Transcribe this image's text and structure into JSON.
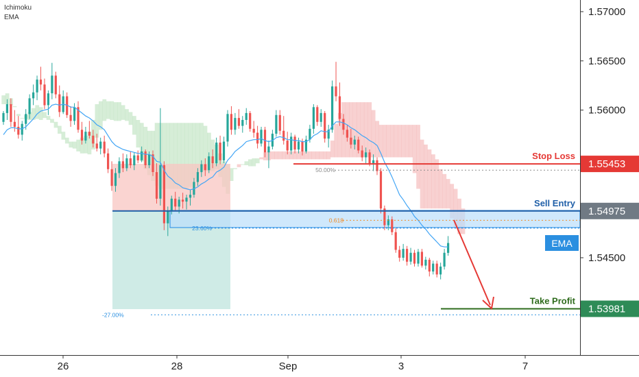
{
  "indicators": [
    "Ichimoku",
    "EMA"
  ],
  "chart_data": {
    "type": "candlestick",
    "symbol_axis": {
      "ticks": [
        "1.57000",
        "1.56500",
        "1.56000",
        "1.55500",
        "1.55000",
        "1.54500"
      ],
      "ylim": [
        1.5345,
        1.5735
      ]
    },
    "x_ticks": [
      "26",
      "28",
      "Sep",
      "3",
      "7"
    ],
    "ohlc": [
      [
        1.5588,
        1.5599,
        1.5585,
        1.5597
      ],
      [
        1.5597,
        1.5611,
        1.559,
        1.5606
      ],
      [
        1.5606,
        1.5612,
        1.5583,
        1.5588
      ],
      [
        1.5588,
        1.56,
        1.5578,
        1.5583
      ],
      [
        1.5583,
        1.5594,
        1.5571,
        1.5575
      ],
      [
        1.5575,
        1.5589,
        1.5569,
        1.5586
      ],
      [
        1.5586,
        1.5601,
        1.558,
        1.5596
      ],
      [
        1.5596,
        1.5616,
        1.5591,
        1.5612
      ],
      [
        1.5612,
        1.5626,
        1.5605,
        1.5618
      ],
      [
        1.5618,
        1.5635,
        1.561,
        1.5631
      ],
      [
        1.5631,
        1.5644,
        1.562,
        1.5626
      ],
      [
        1.5626,
        1.5632,
        1.5601,
        1.5605
      ],
      [
        1.5605,
        1.562,
        1.5595,
        1.5617
      ],
      [
        1.5617,
        1.5648,
        1.5611,
        1.5635
      ],
      [
        1.5635,
        1.5639,
        1.5612,
        1.5616
      ],
      [
        1.5616,
        1.5625,
        1.5593,
        1.5598
      ],
      [
        1.5598,
        1.562,
        1.5596,
        1.5614
      ],
      [
        1.5614,
        1.5618,
        1.5592,
        1.5595
      ],
      [
        1.5595,
        1.5604,
        1.5583,
        1.5589
      ],
      [
        1.5589,
        1.5607,
        1.5585,
        1.5603
      ],
      [
        1.5603,
        1.5609,
        1.5577,
        1.558
      ],
      [
        1.558,
        1.5588,
        1.5565,
        1.5569
      ],
      [
        1.5569,
        1.5583,
        1.5566,
        1.5578
      ],
      [
        1.5578,
        1.5589,
        1.5571,
        1.5574
      ],
      [
        1.5574,
        1.558,
        1.5562,
        1.5566
      ],
      [
        1.5566,
        1.5576,
        1.5558,
        1.5561
      ],
      [
        1.5561,
        1.5572,
        1.5555,
        1.5568
      ],
      [
        1.5568,
        1.5574,
        1.5552,
        1.5556
      ],
      [
        1.5556,
        1.5561,
        1.5536,
        1.554
      ],
      [
        1.554,
        1.5548,
        1.5518,
        1.5523
      ],
      [
        1.5523,
        1.5541,
        1.5517,
        1.5536
      ],
      [
        1.5536,
        1.5552,
        1.5531,
        1.5548
      ],
      [
        1.5548,
        1.5556,
        1.5537,
        1.5541
      ],
      [
        1.5541,
        1.5555,
        1.5538,
        1.5551
      ],
      [
        1.5551,
        1.5558,
        1.5541,
        1.5544
      ],
      [
        1.5544,
        1.5557,
        1.5539,
        1.5554
      ],
      [
        1.5554,
        1.5559,
        1.5546,
        1.5549
      ],
      [
        1.5549,
        1.5563,
        1.5547,
        1.5558
      ],
      [
        1.5558,
        1.556,
        1.5541,
        1.5544
      ],
      [
        1.5544,
        1.5558,
        1.5541,
        1.5555
      ],
      [
        1.5555,
        1.5559,
        1.5533,
        1.5537
      ],
      [
        1.5537,
        1.5546,
        1.5505,
        1.551
      ],
      [
        1.551,
        1.5602,
        1.5503,
        1.5544
      ],
      [
        1.5544,
        1.5548,
        1.5478,
        1.5485
      ],
      [
        1.5485,
        1.5502,
        1.5472,
        1.5498
      ],
      [
        1.5498,
        1.5513,
        1.5494,
        1.551
      ],
      [
        1.551,
        1.5517,
        1.5498,
        1.5502
      ],
      [
        1.5502,
        1.5512,
        1.5495,
        1.5509
      ],
      [
        1.5509,
        1.5516,
        1.55,
        1.5507
      ],
      [
        1.5507,
        1.5514,
        1.5499,
        1.5511
      ],
      [
        1.5511,
        1.5519,
        1.5503,
        1.5514
      ],
      [
        1.5514,
        1.5531,
        1.5511,
        1.5527
      ],
      [
        1.5527,
        1.5541,
        1.5523,
        1.5537
      ],
      [
        1.5537,
        1.5549,
        1.5532,
        1.5545
      ],
      [
        1.5545,
        1.5551,
        1.5533,
        1.5539
      ],
      [
        1.5539,
        1.5557,
        1.5536,
        1.5553
      ],
      [
        1.5553,
        1.556,
        1.5541,
        1.5546
      ],
      [
        1.5546,
        1.5572,
        1.5543,
        1.5567
      ],
      [
        1.5567,
        1.5574,
        1.5545,
        1.5549
      ],
      [
        1.5549,
        1.5573,
        1.5546,
        1.5568
      ],
      [
        1.5568,
        1.56,
        1.5563,
        1.5596
      ],
      [
        1.5596,
        1.5604,
        1.5575,
        1.558
      ],
      [
        1.558,
        1.5597,
        1.5575,
        1.5592
      ],
      [
        1.5592,
        1.5601,
        1.5581,
        1.5584
      ],
      [
        1.5584,
        1.5594,
        1.5577,
        1.559
      ],
      [
        1.559,
        1.5602,
        1.5585,
        1.5597
      ],
      [
        1.5597,
        1.5599,
        1.5578,
        1.5581
      ],
      [
        1.5581,
        1.5589,
        1.5572,
        1.5577
      ],
      [
        1.5577,
        1.5584,
        1.5561,
        1.5566
      ],
      [
        1.5566,
        1.5583,
        1.5563,
        1.558
      ],
      [
        1.558,
        1.5583,
        1.5552,
        1.5557
      ],
      [
        1.5557,
        1.5569,
        1.5541,
        1.5563
      ],
      [
        1.5563,
        1.558,
        1.556,
        1.5576
      ],
      [
        1.5576,
        1.56,
        1.5573,
        1.5595
      ],
      [
        1.5595,
        1.56,
        1.5575,
        1.5579
      ],
      [
        1.5579,
        1.5594,
        1.5565,
        1.5569
      ],
      [
        1.5569,
        1.5578,
        1.5555,
        1.5559
      ],
      [
        1.5559,
        1.5577,
        1.5555,
        1.5573
      ],
      [
        1.5573,
        1.5575,
        1.5556,
        1.556
      ],
      [
        1.556,
        1.5572,
        1.5556,
        1.5568
      ],
      [
        1.5568,
        1.5571,
        1.5554,
        1.5558
      ],
      [
        1.5558,
        1.5574,
        1.5556,
        1.557
      ],
      [
        1.557,
        1.5585,
        1.5567,
        1.5581
      ],
      [
        1.5581,
        1.5606,
        1.5576,
        1.5603
      ],
      [
        1.5603,
        1.5605,
        1.5584,
        1.5588
      ],
      [
        1.5588,
        1.5601,
        1.5583,
        1.5597
      ],
      [
        1.5597,
        1.5599,
        1.5567,
        1.5571
      ],
      [
        1.5571,
        1.5585,
        1.5562,
        1.558
      ],
      [
        1.558,
        1.563,
        1.5577,
        1.5624
      ],
      [
        1.5624,
        1.5649,
        1.5609,
        1.5614
      ],
      [
        1.5614,
        1.5628,
        1.5584,
        1.5591
      ],
      [
        1.5591,
        1.5596,
        1.5575,
        1.558
      ],
      [
        1.558,
        1.5585,
        1.5568,
        1.5572
      ],
      [
        1.5572,
        1.5581,
        1.5561,
        1.5565
      ],
      [
        1.5565,
        1.5574,
        1.556,
        1.557
      ],
      [
        1.557,
        1.5573,
        1.5556,
        1.5559
      ],
      [
        1.5559,
        1.5564,
        1.5548,
        1.5552
      ],
      [
        1.5552,
        1.5562,
        1.5546,
        1.5557
      ],
      [
        1.5557,
        1.556,
        1.5543,
        1.5546
      ],
      [
        1.5546,
        1.5555,
        1.5538,
        1.5549
      ],
      [
        1.5549,
        1.5552,
        1.5534,
        1.5538
      ],
      [
        1.5538,
        1.5541,
        1.5495,
        1.55
      ],
      [
        1.55,
        1.5503,
        1.5478,
        1.5483
      ],
      [
        1.5483,
        1.5493,
        1.5478,
        1.5489
      ],
      [
        1.5489,
        1.5492,
        1.5473,
        1.5476
      ],
      [
        1.5476,
        1.548,
        1.5455,
        1.5458
      ],
      [
        1.5458,
        1.5462,
        1.5446,
        1.545
      ],
      [
        1.545,
        1.5464,
        1.5447,
        1.5459
      ],
      [
        1.5459,
        1.5462,
        1.5442,
        1.5446
      ],
      [
        1.5446,
        1.546,
        1.5443,
        1.5455
      ],
      [
        1.5455,
        1.5458,
        1.5441,
        1.5444
      ],
      [
        1.5444,
        1.5459,
        1.5441,
        1.5456
      ],
      [
        1.5456,
        1.5459,
        1.544,
        1.5442
      ],
      [
        1.5442,
        1.5451,
        1.5438,
        1.5448
      ],
      [
        1.5448,
        1.545,
        1.5431,
        1.5436
      ],
      [
        1.5436,
        1.5447,
        1.5433,
        1.5444
      ],
      [
        1.5444,
        1.5447,
        1.543,
        1.5433
      ],
      [
        1.5433,
        1.5445,
        1.5428,
        1.5441
      ],
      [
        1.5441,
        1.5459,
        1.5438,
        1.5455
      ],
      [
        1.5455,
        1.5472,
        1.5452,
        1.5465
      ]
    ],
    "ema": [
      1.5575,
      1.558,
      1.5582,
      1.5582,
      1.5581,
      1.5581,
      1.5583,
      1.5587,
      1.5591,
      1.5596,
      1.5599,
      1.56,
      1.5601,
      1.5605,
      1.5606,
      1.5605,
      1.5606,
      1.5605,
      1.5603,
      1.5603,
      1.56,
      1.5597,
      1.5594,
      1.5592,
      1.5589,
      1.5585,
      1.5583,
      1.558,
      1.5574,
      1.5568,
      1.5564,
      1.5562,
      1.556,
      1.5559,
      1.5558,
      1.5557,
      1.5556,
      1.5556,
      1.5555,
      1.5555,
      1.5553,
      1.5548,
      1.5547,
      1.5539,
      1.5533,
      1.553,
      1.5526,
      1.5524,
      1.5521,
      1.552,
      1.5519,
      1.552,
      1.5522,
      1.5525,
      1.5527,
      1.553,
      1.5532,
      1.5537,
      1.5539,
      1.5542,
      1.5549,
      1.5553,
      1.5558,
      1.5561,
      1.5564,
      1.5568,
      1.5569,
      1.557,
      1.557,
      1.5571,
      1.5569,
      1.5568,
      1.5569,
      1.5572,
      1.5573,
      1.5572,
      1.557,
      1.557,
      1.5569,
      1.5569,
      1.5568,
      1.5568,
      1.557,
      1.5574,
      1.5576,
      1.5579,
      1.5578,
      1.5578,
      1.5584,
      1.5588,
      1.5588,
      1.5587,
      1.5585,
      1.5582,
      1.558,
      1.5577,
      1.5574,
      1.5572,
      1.5569,
      1.5567,
      1.5564,
      1.5556,
      1.5547,
      1.554,
      1.5532,
      1.5523,
      1.5514,
      1.5509,
      1.5503,
      1.5498,
      1.5492,
      1.5488,
      1.5483,
      1.5479,
      1.5474,
      1.547,
      1.5466,
      1.5462,
      1.5461,
      1.5461
    ],
    "cloud": [
      [
        1.5615,
        1.5606
      ],
      [
        1.5617,
        1.5606
      ],
      [
        1.5612,
        1.5605
      ],
      [
        1.5604,
        1.5603
      ],
      [
        1.5596,
        1.5594
      ],
      [
        1.5592,
        1.5592
      ],
      [
        1.5595,
        1.5591
      ],
      [
        1.5598,
        1.559
      ],
      [
        1.5602,
        1.559
      ],
      [
        1.5605,
        1.5591
      ],
      [
        1.5603,
        1.559
      ],
      [
        1.5598,
        1.5592
      ],
      [
        1.5594,
        1.559
      ],
      [
        1.5591,
        1.5587
      ],
      [
        1.5588,
        1.5582
      ],
      [
        1.5584,
        1.5576
      ],
      [
        1.5578,
        1.557
      ],
      [
        1.5572,
        1.5566
      ],
      [
        1.5568,
        1.5562
      ],
      [
        1.5568,
        1.5561
      ],
      [
        1.557,
        1.5558
      ],
      [
        1.5572,
        1.5556
      ],
      [
        1.5574,
        1.5556
      ],
      [
        1.5578,
        1.5555
      ],
      [
        1.559,
        1.556
      ],
      [
        1.5606,
        1.5572
      ],
      [
        1.5609,
        1.558
      ],
      [
        1.5611,
        1.5589
      ],
      [
        1.5609,
        1.5591
      ],
      [
        1.5609,
        1.559
      ],
      [
        1.5608,
        1.5589
      ],
      [
        1.5608,
        1.5589
      ],
      [
        1.5605,
        1.559
      ],
      [
        1.5601,
        1.5589
      ],
      [
        1.5598,
        1.5585
      ],
      [
        1.5594,
        1.5575
      ],
      [
        1.559,
        1.5562
      ],
      [
        1.5587,
        1.5548
      ],
      [
        1.5583,
        1.554
      ],
      [
        1.5579,
        1.5534
      ],
      [
        1.5579,
        1.5528
      ],
      [
        1.5587,
        1.5523
      ],
      [
        1.5587,
        1.552
      ],
      [
        1.5587,
        1.552
      ],
      [
        1.5587,
        1.552
      ],
      [
        1.5587,
        1.552
      ],
      [
        1.5587,
        1.552
      ],
      [
        1.5587,
        1.552
      ],
      [
        1.5587,
        1.552
      ],
      [
        1.5587,
        1.552
      ],
      [
        1.5587,
        1.5522
      ],
      [
        1.5587,
        1.553
      ],
      [
        1.5587,
        1.5536
      ],
      [
        1.5587,
        1.5538
      ],
      [
        1.5584,
        1.5538
      ],
      [
        1.5577,
        1.5538
      ],
      [
        1.557,
        1.5538
      ],
      [
        1.5565,
        1.554
      ],
      [
        1.5556,
        1.5532
      ],
      [
        1.5548,
        1.5522
      ],
      [
        1.5545,
        1.5515
      ],
      [
        1.5541,
        1.5528
      ],
      [
        1.5541,
        1.554
      ],
      [
        1.5542,
        1.5545
      ],
      [
        1.5545,
        1.5545
      ],
      [
        1.5548,
        1.5544
      ],
      [
        1.555,
        1.5543
      ],
      [
        1.5551,
        1.5543
      ],
      [
        1.5551,
        1.5546
      ],
      [
        1.555,
        1.5552
      ],
      [
        1.5549,
        1.5557
      ],
      [
        1.5549,
        1.5558
      ],
      [
        1.555,
        1.5558
      ],
      [
        1.555,
        1.5558
      ],
      [
        1.555,
        1.5558
      ],
      [
        1.555,
        1.5558
      ],
      [
        1.555,
        1.5558
      ],
      [
        1.555,
        1.5558
      ],
      [
        1.555,
        1.5558
      ],
      [
        1.555,
        1.5558
      ],
      [
        1.555,
        1.5558
      ],
      [
        1.555,
        1.5558
      ],
      [
        1.555,
        1.5558
      ],
      [
        1.555,
        1.5558
      ],
      [
        1.555,
        1.5558
      ],
      [
        1.555,
        1.5558
      ],
      [
        1.555,
        1.5558
      ],
      [
        1.555,
        1.5558
      ],
      [
        1.5552,
        1.5569
      ],
      [
        1.5552,
        1.5586
      ],
      [
        1.5552,
        1.5597
      ],
      [
        1.5552,
        1.5608
      ],
      [
        1.5552,
        1.5608
      ],
      [
        1.5552,
        1.5608
      ],
      [
        1.5552,
        1.5608
      ],
      [
        1.5552,
        1.5608
      ],
      [
        1.5552,
        1.5608
      ],
      [
        1.5552,
        1.5608
      ],
      [
        1.5552,
        1.5608
      ],
      [
        1.5552,
        1.56
      ],
      [
        1.5552,
        1.5589
      ],
      [
        1.5552,
        1.5585
      ],
      [
        1.5552,
        1.5585
      ],
      [
        1.5552,
        1.5585
      ],
      [
        1.5552,
        1.5585
      ],
      [
        1.5552,
        1.5585
      ],
      [
        1.5552,
        1.5585
      ],
      [
        1.5552,
        1.5585
      ],
      [
        1.5552,
        1.5585
      ],
      [
        1.5552,
        1.5585
      ],
      [
        1.5536,
        1.5585
      ],
      [
        1.552,
        1.5585
      ],
      [
        1.55,
        1.557
      ],
      [
        1.55,
        1.5565
      ],
      [
        1.55,
        1.556
      ],
      [
        1.55,
        1.5555
      ],
      [
        1.55,
        1.555
      ],
      [
        1.55,
        1.554
      ],
      [
        1.55,
        1.5535
      ],
      [
        1.55,
        1.553
      ],
      [
        1.549,
        1.5525
      ],
      [
        1.548,
        1.552
      ],
      [
        1.5474,
        1.551
      ],
      [
        1.5474,
        1.55
      ]
    ],
    "levels": {
      "stop_loss": {
        "label": "Stop Loss",
        "value": "1.55453",
        "price": 1.55453,
        "color": "#e53935"
      },
      "sell_entry": {
        "label": "Sell Entry",
        "value": "1.54975",
        "price": 1.54975,
        "color": "#1f5fa8"
      },
      "take_profit": {
        "label": "Take Profit",
        "value": "1.53981",
        "price": 1.53981,
        "color": "#2e6b1c"
      },
      "ema_tag": {
        "label": "EMA",
        "color": "#2b8fe0"
      }
    },
    "fib_labels": [
      {
        "text": "50.00%",
        "price": 1.5539,
        "color": "#8c8c8c"
      },
      {
        "text": "0.618",
        "price": 1.5488,
        "color": "#f08a24"
      },
      {
        "text": "23.60%",
        "price": 1.548,
        "color": "#2b8fe0"
      },
      {
        "text": "-27.00%",
        "price": 1.5392,
        "color": "#2b8fe0"
      }
    ],
    "colors": {
      "up": "#26a69a",
      "down": "#ef5350",
      "cloud_bull": "#a5d6a7",
      "cloud_bear": "#ef9a9a",
      "ema_line": "#42a5f5"
    }
  }
}
